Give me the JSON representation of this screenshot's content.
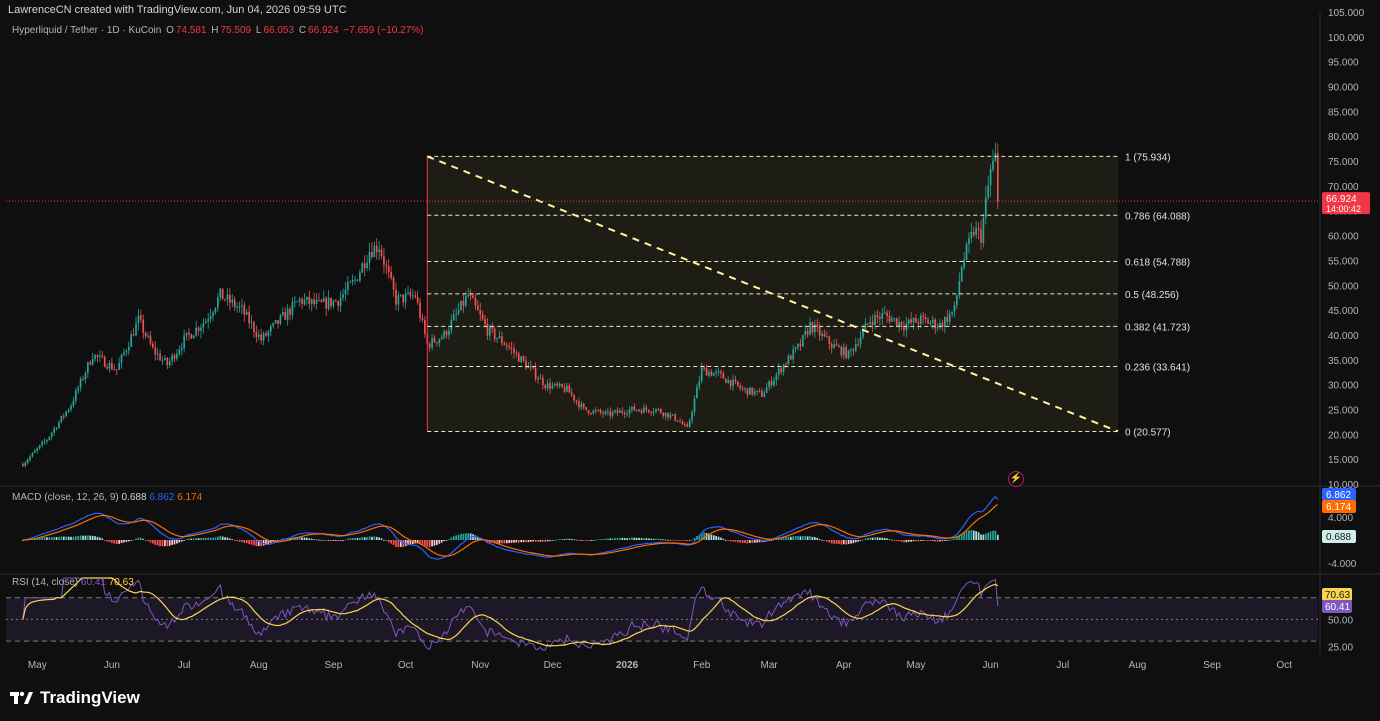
{
  "header": {
    "credit": "LawrenceCN created with TradingView.com, Jun 04, 2026 09:59 UTC",
    "symbol": "Hyperliquid / Tether · 1D · KuCoin",
    "o_label": "O",
    "o_value": "74.581",
    "h_label": "H",
    "h_value": "75.509",
    "l_label": "L",
    "l_value": "66.053",
    "c_label": "C",
    "c_value": "66.924",
    "change": "−7.659 (−10.27%)"
  },
  "price_scale": {
    "ticks": [
      "105.000",
      "100.000",
      "95.000",
      "90.000",
      "85.000",
      "80.000",
      "75.000",
      "70.000",
      "65.000",
      "60.000",
      "55.000",
      "50.000",
      "45.000",
      "40.000",
      "35.000",
      "30.000",
      "25.000",
      "20.000",
      "15.000",
      "10.000"
    ],
    "last_price": "66.924",
    "countdown": "14:00:42"
  },
  "fib": {
    "levels": [
      {
        "label": "1 (75.934)",
        "value": 75.934
      },
      {
        "label": "0.786 (64.088)",
        "value": 64.088
      },
      {
        "label": "0.618 (54.788)",
        "value": 54.788
      },
      {
        "label": "0.5 (48.256)",
        "value": 48.256
      },
      {
        "label": "0.382 (41.723)",
        "value": 41.723
      },
      {
        "label": "0.236 (33.641)",
        "value": 33.641
      },
      {
        "label": "0 (20.577)",
        "value": 20.577
      }
    ]
  },
  "macd": {
    "legend_name": "MACD (close, 12, 26, 9)",
    "hist_value": "0.688",
    "macd_value": "6.862",
    "signal_value": "6.174",
    "scale_ticks": [
      "4.000",
      "-4.000"
    ]
  },
  "rsi": {
    "legend_name": "RSI (14, close)",
    "rsi_value": "60.41",
    "ma_value": "70.63",
    "scale_ticks": [
      "50.00",
      "25.00"
    ]
  },
  "time_axis": [
    "May",
    "Jun",
    "Jul",
    "Aug",
    "Sep",
    "Oct",
    "Nov",
    "Dec",
    "2026",
    "Feb",
    "Mar",
    "Apr",
    "May",
    "Jun",
    "Jul",
    "Aug",
    "Sep",
    "Oct"
  ],
  "brand": "TradingView",
  "colors": {
    "up": "#26a69a",
    "down": "#ef5350",
    "macd": "#2962ff",
    "signal": "#ff6d00",
    "rsi": "#7e57c2",
    "rsi_ma": "#ffd54f",
    "fib": "#e8e8c8",
    "last_price": "#f23645"
  },
  "chart_data": {
    "type": "candlestick",
    "symbol": "Hyperliquid / Tether",
    "interval": "1D",
    "exchange": "KuCoin",
    "ylim": [
      10,
      105
    ],
    "close_path": [
      [
        "2025-04-25",
        14
      ],
      [
        "2025-05-05",
        19
      ],
      [
        "2025-05-15",
        26
      ],
      [
        "2025-05-24",
        36
      ],
      [
        "2025-06-03",
        33
      ],
      [
        "2025-06-12",
        43
      ],
      [
        "2025-06-18",
        37
      ],
      [
        "2025-06-24",
        34
      ],
      [
        "2025-07-01",
        39
      ],
      [
        "2025-07-10",
        43
      ],
      [
        "2025-07-16",
        48
      ],
      [
        "2025-07-25",
        45
      ],
      [
        "2025-08-02",
        39
      ],
      [
        "2025-08-10",
        43
      ],
      [
        "2025-08-18",
        47
      ],
      [
        "2025-08-26",
        46
      ],
      [
        "2025-09-03",
        47
      ],
      [
        "2025-09-10",
        51
      ],
      [
        "2025-09-16",
        57
      ],
      [
        "2025-09-20",
        58
      ],
      [
        "2025-09-27",
        47
      ],
      [
        "2025-10-05",
        48
      ],
      [
        "2025-10-10",
        38
      ],
      [
        "2025-10-17",
        40
      ],
      [
        "2025-10-27",
        48
      ],
      [
        "2025-11-04",
        41
      ],
      [
        "2025-11-12",
        38
      ],
      [
        "2025-11-20",
        34
      ],
      [
        "2025-11-28",
        30
      ],
      [
        "2025-12-07",
        29
      ],
      [
        "2025-12-14",
        25
      ],
      [
        "2025-12-24",
        24
      ],
      [
        "2026-01-03",
        25
      ],
      [
        "2026-01-13",
        25
      ],
      [
        "2026-01-22",
        23
      ],
      [
        "2026-01-26",
        21
      ],
      [
        "2026-02-01",
        33
      ],
      [
        "2026-02-08",
        32
      ],
      [
        "2026-02-18",
        29
      ],
      [
        "2026-02-26",
        28
      ],
      [
        "2026-03-07",
        34
      ],
      [
        "2026-03-14",
        38
      ],
      [
        "2026-03-18",
        42
      ],
      [
        "2026-03-27",
        38
      ],
      [
        "2026-04-03",
        36
      ],
      [
        "2026-04-12",
        43
      ],
      [
        "2026-04-18",
        44
      ],
      [
        "2026-04-26",
        42
      ],
      [
        "2026-05-03",
        43
      ],
      [
        "2026-05-11",
        42
      ],
      [
        "2026-05-17",
        45
      ],
      [
        "2026-05-20",
        54
      ],
      [
        "2026-05-25",
        61
      ],
      [
        "2026-05-28",
        60
      ],
      [
        "2026-06-01",
        73
      ],
      [
        "2026-06-03",
        75.5
      ],
      [
        "2026-06-04",
        66.924
      ]
    ],
    "fib_retracement": {
      "high": 75.934,
      "low": 20.577
    },
    "trendline": {
      "from": [
        "2025-10-10",
        75.934
      ],
      "to": [
        "2026-07-15",
        20.577
      ]
    },
    "macd": {
      "macd": 6.862,
      "signal": 6.174,
      "histogram": 0.688
    },
    "rsi": {
      "rsi": 60.41,
      "rsi_ma": 70.63,
      "bands": [
        70,
        50,
        30
      ]
    }
  }
}
